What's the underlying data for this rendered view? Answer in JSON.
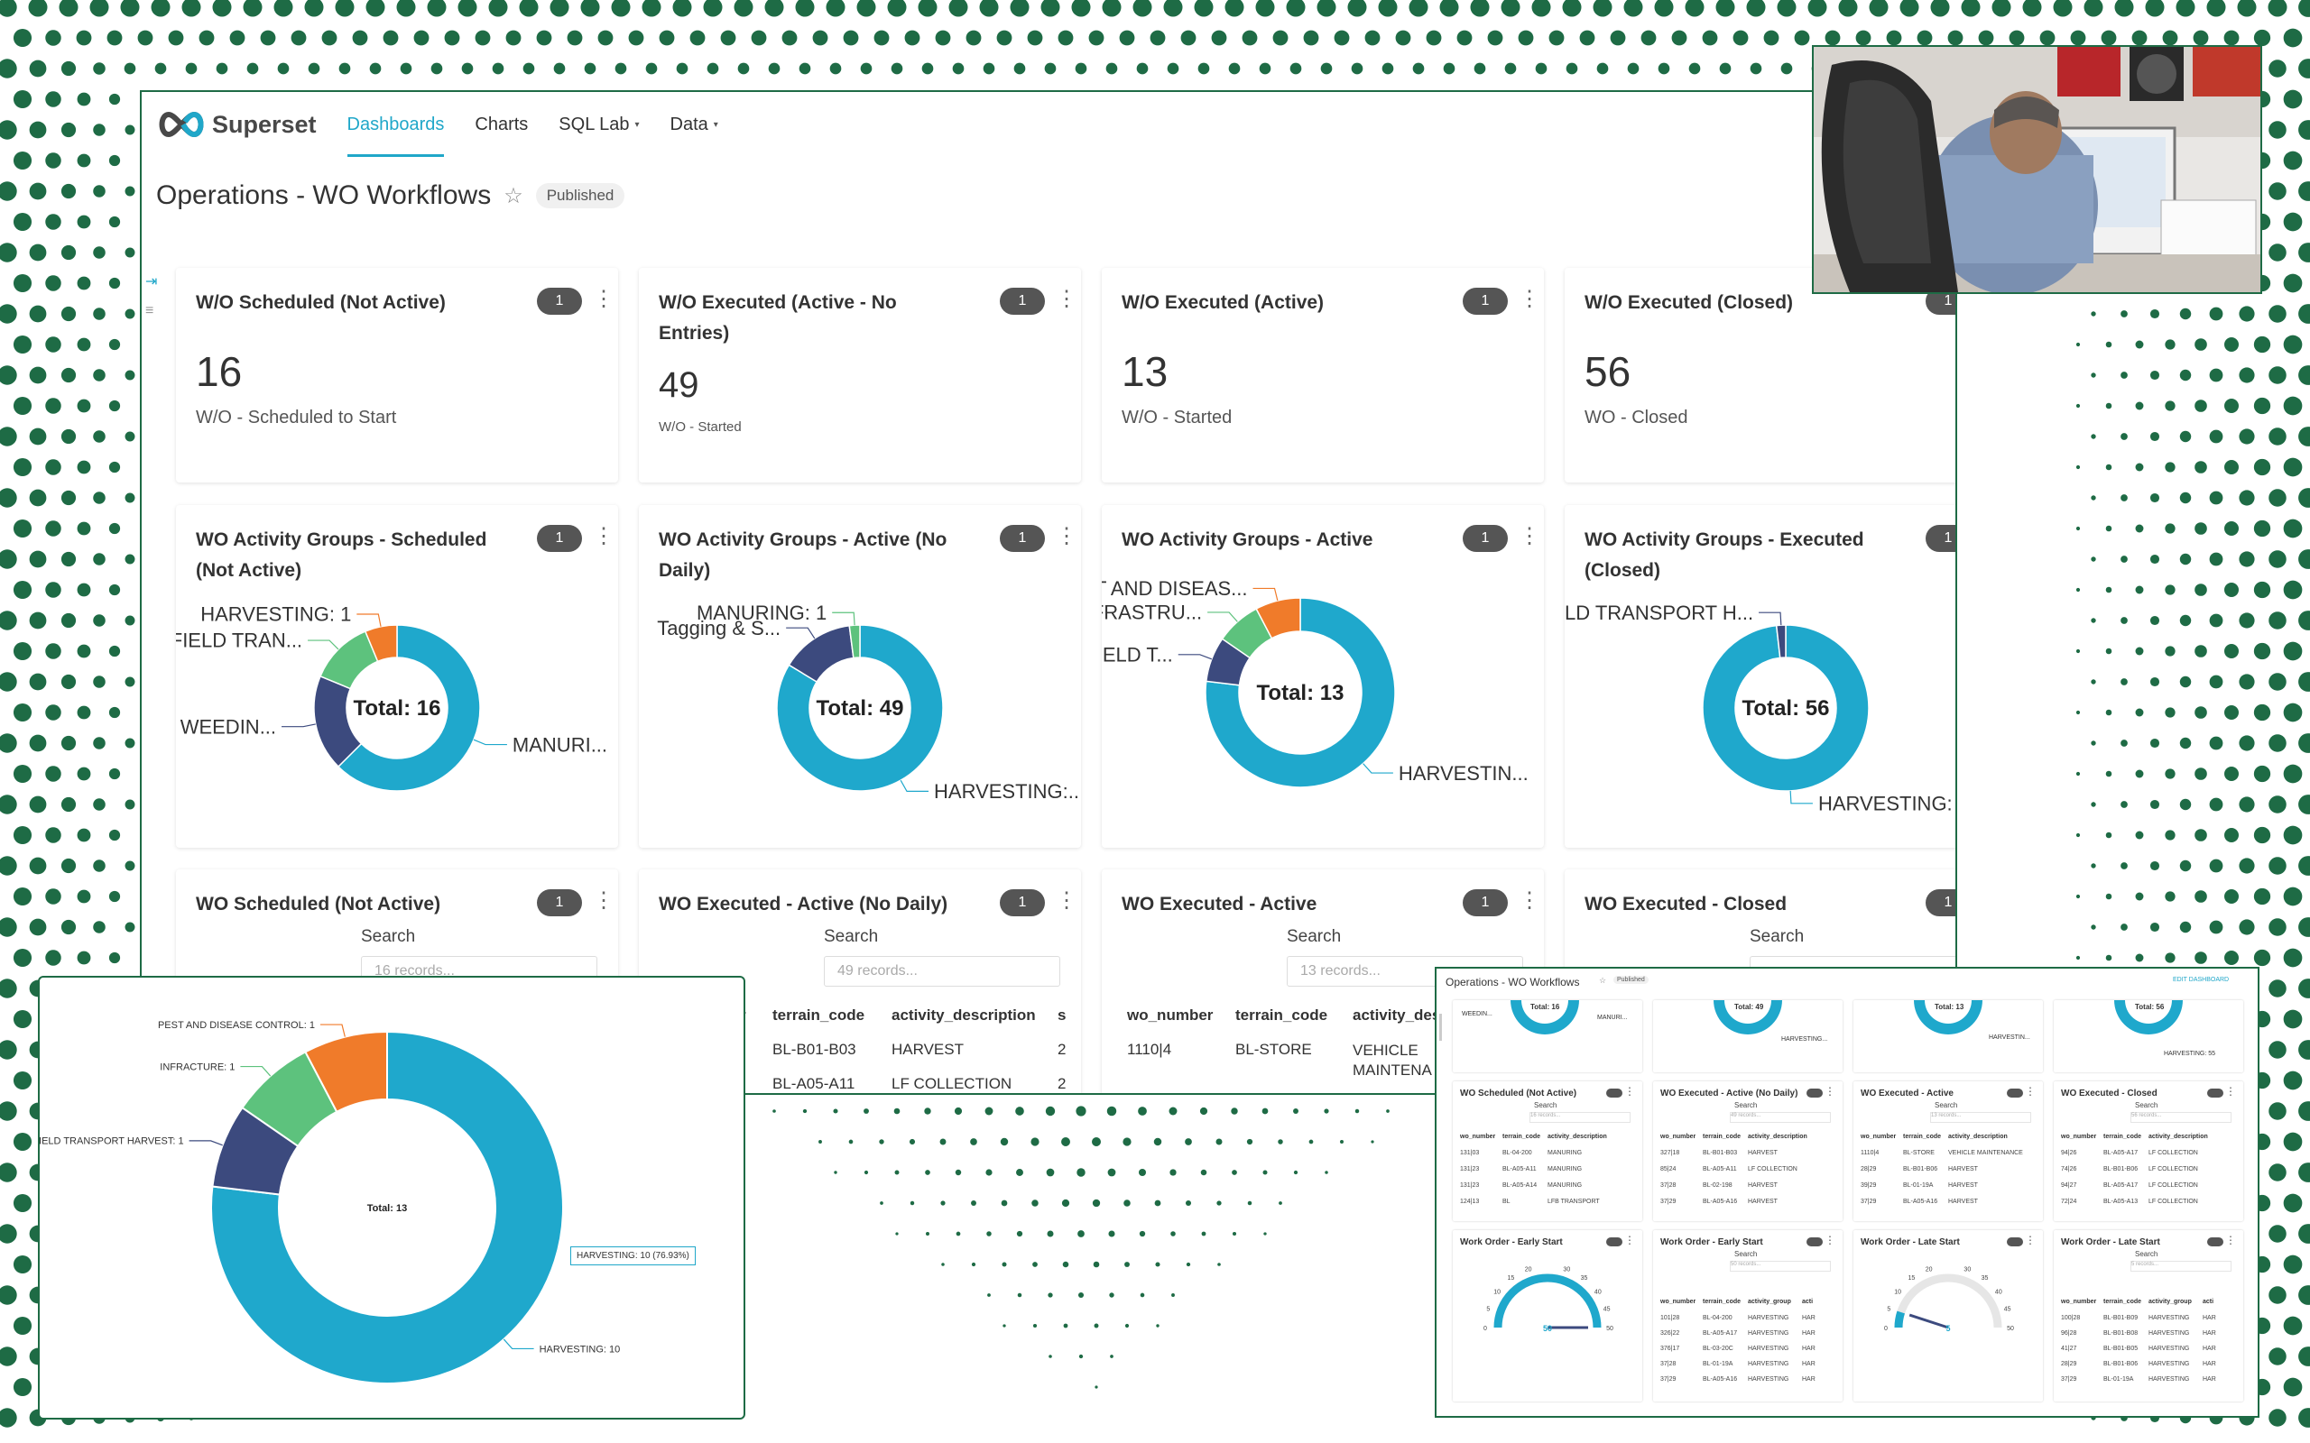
{
  "colors": {
    "accent": "#20a7c9",
    "teal": "#1fa8cc",
    "navy": "#3c4a7e",
    "green": "#5dc27d",
    "orange": "#f07b2a",
    "dots": "#1e6b45"
  },
  "nav": {
    "brand": "Superset",
    "items": [
      {
        "label": "Dashboards",
        "active": true
      },
      {
        "label": "Charts"
      },
      {
        "label": "SQL Lab",
        "caret": "▾"
      },
      {
        "label": "Data",
        "caret": "▾"
      }
    ]
  },
  "dashboard": {
    "title": "Operations - WO Workflows",
    "status": "Published"
  },
  "filter_badge": "1",
  "kpis": [
    {
      "title": "W/O Scheduled (Not Active)",
      "value": "16",
      "subtitle": "W/O - Scheduled to Start"
    },
    {
      "title": "W/O Executed (Active - No Entries)",
      "value": "49",
      "subtitle": "W/O - Started"
    },
    {
      "title": "W/O Executed (Active)",
      "value": "13",
      "subtitle": "W/O - Started"
    },
    {
      "title": "W/O Executed (Closed)",
      "value": "56",
      "subtitle": "WO - Closed"
    }
  ],
  "donut_titles": [
    "WO Activity Groups - Scheduled (Not Active)",
    "WO Activity Groups - Active (No Daily)",
    "WO Activity Groups - Active",
    "WO Activity Groups - Executed (Closed)"
  ],
  "chart_data": [
    {
      "type": "pie",
      "title": "WO Activity Groups - Scheduled (Not Active)",
      "center_label": "Total: 16",
      "slices": [
        {
          "label": "MANURI...",
          "value": 10
        },
        {
          "label": "WEEDIN...",
          "value": 3
        },
        {
          "label": "FIELD TRAN...",
          "value": 2
        },
        {
          "label": "HARVESTING: 1",
          "value": 1
        }
      ]
    },
    {
      "type": "pie",
      "title": "WO Activity Groups - Active (No Daily)",
      "center_label": "Total: 49",
      "slices": [
        {
          "label": "HARVESTING:...",
          "value": 41
        },
        {
          "label": "Tagging & S...",
          "value": 7
        },
        {
          "label": "MANURING: 1",
          "value": 1
        }
      ]
    },
    {
      "type": "pie",
      "title": "WO Activity Groups - Active",
      "center_label": "Total: 13",
      "slices": [
        {
          "label": "HARVESTIN...",
          "value": 10
        },
        {
          "label": "FIELD T...",
          "value": 1
        },
        {
          "label": "INFRASTRU...",
          "value": 1
        },
        {
          "label": "PEST AND DISEAS...",
          "value": 1
        }
      ]
    },
    {
      "type": "pie",
      "title": "WO Activity Groups - Executed (Closed)",
      "center_label": "Total: 56",
      "slices": [
        {
          "label": "HARVESTING: 55",
          "value": 55
        },
        {
          "label": "FIELD TRANSPORT H...",
          "value": 1
        }
      ]
    },
    {
      "type": "pie",
      "title": "",
      "center_label": "Total: 13",
      "slices": [
        {
          "label": "HARVESTING: 10",
          "value": 10
        },
        {
          "label": "FIELD TRANSPORT HARVEST: 1",
          "value": 1
        },
        {
          "label": "INFRACTURE: 1",
          "value": 1
        },
        {
          "label": "PEST AND DISEASE CONTROL: 1",
          "value": 1
        }
      ],
      "tooltip": "HARVESTING: 10 (76.93%)"
    }
  ],
  "tables": [
    {
      "title": "WO Scheduled (Not Active)",
      "search_label": "Search",
      "placeholder": "16 records..."
    },
    {
      "title": "WO Executed - Active (No Daily)",
      "search_label": "Search",
      "placeholder": "49 records...",
      "headers": [
        "r",
        "terrain_code",
        "activity_description",
        "s"
      ],
      "rows": [
        [
          "BL-B01-B03",
          "HARVEST",
          "2"
        ],
        [
          "BL-A05-A11",
          "LF COLLECTION",
          "2"
        ]
      ]
    },
    {
      "title": "WO Executed - Active",
      "search_label": "Search",
      "placeholder": "13 records...",
      "headers": [
        "wo_number",
        "terrain_code",
        "activity_des"
      ],
      "rows": [
        [
          "1110|4",
          "BL-STORE",
          "VEHICLE MAINTENA"
        ]
      ]
    },
    {
      "title": "WO Executed - Closed",
      "search_label": "Search"
    }
  ],
  "thumb": {
    "title": "Operations - WO Workflows",
    "status": "Published",
    "edit": "EDIT DASHBOARD",
    "donut_totals": [
      "Total: 16",
      "Total: 49",
      "Total: 13",
      "Total: 56"
    ],
    "donut_labels": [
      "WEEDIN...",
      "MANURI...",
      "HARVESTING...",
      "HARVESTIN...",
      "HARVESTING: 55"
    ],
    "tables": [
      {
        "title": "WO Scheduled (Not Active)",
        "search": "Search",
        "placeholder": "16 records...",
        "headers": [
          "wo_number",
          "terrain_code",
          "activity_description"
        ],
        "rows": [
          [
            "131|03",
            "BL-04-200",
            "MANURING"
          ],
          [
            "131|23",
            "BL-A05-A11",
            "MANURING"
          ],
          [
            "131|23",
            "BL-A05-A14",
            "MANURING"
          ],
          [
            "124|13",
            "BL",
            "LFB TRANSPORT"
          ]
        ]
      },
      {
        "title": "WO Executed - Active (No Daily)",
        "search": "Search",
        "placeholder": "49 records...",
        "headers": [
          "wo_number",
          "terrain_code",
          "activity_description"
        ],
        "rows": [
          [
            "327|18",
            "BL-B01-B03",
            "HARVEST"
          ],
          [
            "85|24",
            "BL-A05-A11",
            "LF COLLECTION"
          ],
          [
            "37|28",
            "BL-02-198",
            "HARVEST"
          ],
          [
            "37|29",
            "BL-A05-A16",
            "HARVEST"
          ]
        ]
      },
      {
        "title": "WO Executed - Active",
        "search": "Search",
        "placeholder": "13 records...",
        "headers": [
          "wo_number",
          "terrain_code",
          "activity_description"
        ],
        "rows": [
          [
            "1110|4",
            "BL-STORE",
            "VEHICLE MAINTENANCE"
          ],
          [
            "28|29",
            "BL-B01-B06",
            "HARVEST"
          ],
          [
            "39|29",
            "BL-01-19A",
            "HARVEST"
          ],
          [
            "37|29",
            "BL-A05-A16",
            "HARVEST"
          ]
        ]
      },
      {
        "title": "WO Executed - Closed",
        "search": "Search",
        "placeholder": "56 records...",
        "headers": [
          "wo_number",
          "terrain_code",
          "activity_description"
        ],
        "rows": [
          [
            "94|26",
            "BL-A05-A17",
            "LF COLLECTION"
          ],
          [
            "74|26",
            "BL-B01-B06",
            "LF COLLECTION"
          ],
          [
            "94|27",
            "BL-A05-A17",
            "LF COLLECTION"
          ],
          [
            "72|24",
            "BL-A05-A13",
            "LF COLLECTION"
          ]
        ]
      }
    ],
    "gauges": [
      {
        "title": "Work Order - Early Start",
        "ticks": [
          "0",
          "5",
          "10",
          "15",
          "20",
          "30",
          "35",
          "40",
          "45",
          "50"
        ],
        "value": "50"
      },
      {
        "title": "Work Order - Late Start",
        "ticks": [
          "0",
          "5",
          "10",
          "15",
          "20",
          "30",
          "35",
          "40",
          "45",
          "50"
        ],
        "value": "5"
      }
    ],
    "list_tables": [
      {
        "title": "Work Order - Early Start",
        "search": "Search",
        "placeholder": "50 records...",
        "headers": [
          "wo_number",
          "terrain_code",
          "activity_group",
          "acti"
        ],
        "rows": [
          [
            "101|28",
            "BL-04-200",
            "HARVESTING",
            "HAR"
          ],
          [
            "326|22",
            "BL-A05-A17",
            "HARVESTING",
            "HAR"
          ],
          [
            "376|17",
            "BL-03-20C",
            "HARVESTING",
            "HAR"
          ],
          [
            "37|28",
            "BL-01-19A",
            "HARVESTING",
            "HAR"
          ],
          [
            "37|29",
            "BL-A05-A16",
            "HARVESTING",
            "HAR"
          ]
        ]
      },
      {
        "title": "Work Order - Late Start",
        "search": "Search",
        "placeholder": "5 records...",
        "headers": [
          "wo_number",
          "terrain_code",
          "activity_group",
          "acti"
        ],
        "rows": [
          [
            "100|28",
            "BL-B01-B09",
            "HARVESTING",
            "HAR"
          ],
          [
            "96|28",
            "BL-B01-B08",
            "HARVESTING",
            "HAR"
          ],
          [
            "41|27",
            "BL-B01-B05",
            "HARVESTING",
            "HAR"
          ],
          [
            "28|29",
            "BL-B01-B06",
            "HARVESTING",
            "HAR"
          ],
          [
            "37|29",
            "BL-01-19A",
            "HARVESTING",
            "HAR"
          ]
        ]
      }
    ]
  }
}
